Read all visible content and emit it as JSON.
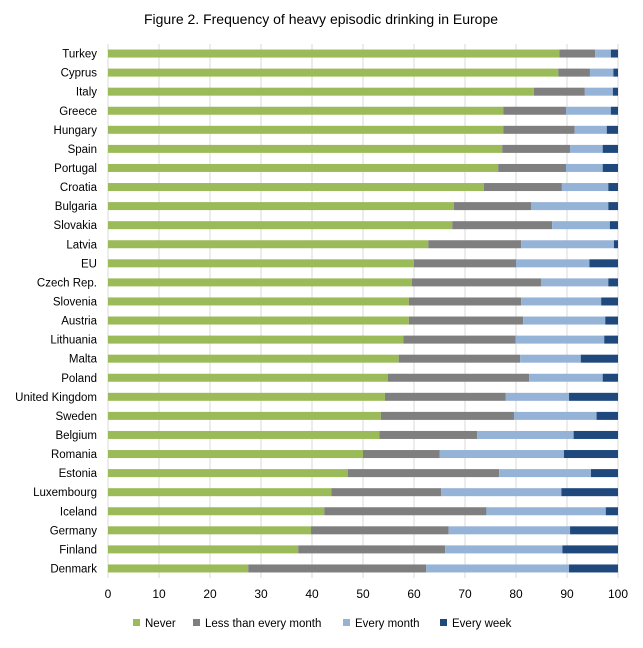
{
  "chart_data": {
    "type": "bar",
    "orientation": "horizontal",
    "stacked": true,
    "title": "Figure 2. Frequency of heavy episodic drinking in Europe",
    "xlabel": "",
    "ylabel": "",
    "xlim": [
      0,
      100
    ],
    "xticks": [
      0,
      10,
      20,
      30,
      40,
      50,
      60,
      70,
      80,
      90,
      100
    ],
    "grid": "vertical",
    "legend_position": "bottom",
    "categories": [
      "Turkey",
      "Cyprus",
      "Italy",
      "Greece",
      "Hungary",
      "Spain",
      "Portugal",
      "Croatia",
      "Bulgaria",
      "Slovakia",
      "Latvia",
      "EU",
      "Czech Rep.",
      "Slovenia",
      "Austria",
      "Lithuania",
      "Malta",
      "Poland",
      "United Kingdom",
      "Sweden",
      "Belgium",
      "Romania",
      "Estonia",
      "Luxembourg",
      "Iceland",
      "Germany",
      "Finland",
      "Denmark"
    ],
    "series": [
      {
        "name": "Never",
        "color": "#9BBB59",
        "values": [
          88.5,
          88.3,
          83.5,
          77.5,
          77.5,
          77.3,
          76.5,
          73.7,
          67.8,
          67.5,
          62.8,
          60.0,
          59.6,
          59.0,
          59.0,
          57.9,
          57.0,
          54.9,
          54.3,
          53.5,
          53.2,
          50.0,
          47.0,
          43.8,
          42.4,
          39.8,
          37.3,
          27.5
        ]
      },
      {
        "name": "Less than every month",
        "color": "#7F7F7F",
        "values": [
          7.0,
          6.2,
          10.0,
          12.3,
          14.0,
          13.3,
          13.3,
          15.3,
          15.2,
          19.6,
          18.2,
          20.0,
          25.3,
          22.0,
          22.4,
          22.0,
          23.8,
          27.7,
          23.7,
          26.1,
          19.2,
          15.0,
          29.7,
          21.5,
          31.8,
          27.0,
          28.8,
          34.9
        ]
      },
      {
        "name": "Every month",
        "color": "#95B3D7",
        "values": [
          3.1,
          4.6,
          5.5,
          8.8,
          6.3,
          6.4,
          7.2,
          9.1,
          15.1,
          11.3,
          18.2,
          14.4,
          13.2,
          15.7,
          16.1,
          17.4,
          11.9,
          14.4,
          12.4,
          16.2,
          18.9,
          24.4,
          18.0,
          23.6,
          23.4,
          23.8,
          23.0,
          28.0
        ]
      },
      {
        "name": "Every week",
        "color": "#1F497D",
        "values": [
          1.4,
          0.9,
          1.0,
          1.4,
          2.2,
          3.0,
          3.0,
          1.9,
          1.9,
          1.6,
          0.8,
          5.6,
          1.9,
          3.3,
          2.5,
          2.7,
          7.3,
          3.0,
          9.6,
          4.2,
          8.7,
          10.6,
          5.3,
          11.1,
          2.4,
          9.4,
          10.9,
          9.6
        ]
      }
    ]
  }
}
